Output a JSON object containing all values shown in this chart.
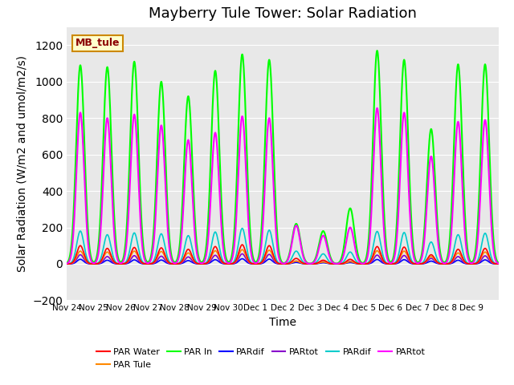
{
  "title": "Mayberry Tule Tower: Solar Radiation",
  "ylabel": "Solar Radiation (W/m2 and umol/m2/s)",
  "xlabel": "Time",
  "ylim": [
    -200,
    1300
  ],
  "yticks": [
    -200,
    0,
    200,
    400,
    600,
    800,
    1000,
    1200
  ],
  "background_color": "#e8e8e8",
  "title_fontsize": 13,
  "label_fontsize": 10,
  "tick_labels": [
    "Nov 24",
    "Nov 25",
    "Nov 26",
    "Nov 27",
    "Nov 28",
    "Nov 29",
    "Nov 30",
    "Dec 1",
    "Dec 2",
    "Dec 3",
    "Dec 4",
    "Dec 5",
    "Dec 6",
    "Dec 7",
    "Dec 8",
    "Dec 9"
  ],
  "series": [
    {
      "label": "PAR Water",
      "color": "#ff0000",
      "lw": 1.2
    },
    {
      "label": "PAR Tule",
      "color": "#ff8800",
      "lw": 1.2
    },
    {
      "label": "PAR In",
      "color": "#00ff00",
      "lw": 1.5
    },
    {
      "label": "PARdif",
      "color": "#0000ff",
      "lw": 1.2
    },
    {
      "label": "PARtot",
      "color": "#8800cc",
      "lw": 1.2
    },
    {
      "label": "PARdif",
      "color": "#00cccc",
      "lw": 1.2
    },
    {
      "label": "PARtot",
      "color": "#ff00ff",
      "lw": 1.5
    }
  ],
  "inset_label": "MB_tule",
  "inset_bg": "#ffffcc",
  "inset_border": "#cc8800",
  "n_days": 16,
  "day_points": 96,
  "peaks": [
    {
      "day": 0,
      "par_water": 100,
      "par_tule": 70,
      "par_in": 1090,
      "pardif_b": 25,
      "partot_p": 50,
      "pardif_c": 180,
      "partot_m": 830
    },
    {
      "day": 1,
      "par_water": 85,
      "par_tule": 65,
      "par_in": 1080,
      "pardif_b": 20,
      "partot_p": 40,
      "pardif_c": 160,
      "partot_m": 800
    },
    {
      "day": 2,
      "par_water": 90,
      "par_tule": 70,
      "par_in": 1110,
      "pardif_b": 22,
      "partot_p": 45,
      "pardif_c": 170,
      "partot_m": 820
    },
    {
      "day": 3,
      "par_water": 88,
      "par_tule": 68,
      "par_in": 1000,
      "pardif_b": 21,
      "partot_p": 42,
      "pardif_c": 165,
      "partot_m": 760
    },
    {
      "day": 4,
      "par_water": 80,
      "par_tule": 60,
      "par_in": 920,
      "pardif_b": 18,
      "partot_p": 38,
      "pardif_c": 155,
      "partot_m": 680
    },
    {
      "day": 5,
      "par_water": 95,
      "par_tule": 72,
      "par_in": 1060,
      "pardif_b": 23,
      "partot_p": 47,
      "pardif_c": 175,
      "partot_m": 720
    },
    {
      "day": 6,
      "par_water": 105,
      "par_tule": 78,
      "par_in": 1150,
      "pardif_b": 28,
      "partot_p": 55,
      "pardif_c": 195,
      "partot_m": 810
    },
    {
      "day": 7,
      "par_water": 100,
      "par_tule": 75,
      "par_in": 1120,
      "pardif_b": 26,
      "partot_p": 52,
      "pardif_c": 185,
      "partot_m": 800
    },
    {
      "day": 8,
      "par_water": 30,
      "par_tule": 15,
      "par_in": 220,
      "pardif_b": 8,
      "partot_p": 15,
      "pardif_c": 70,
      "partot_m": 210
    },
    {
      "day": 9,
      "par_water": 20,
      "par_tule": 10,
      "par_in": 180,
      "pardif_b": 6,
      "partot_p": 12,
      "pardif_c": 55,
      "partot_m": 155
    },
    {
      "day": 10,
      "par_water": 25,
      "par_tule": 12,
      "par_in": 305,
      "pardif_b": 7,
      "partot_p": 14,
      "pardif_c": 65,
      "partot_m": 200
    },
    {
      "day": 11,
      "par_water": 95,
      "par_tule": 72,
      "par_in": 1170,
      "pardif_b": 24,
      "partot_p": 48,
      "pardif_c": 178,
      "partot_m": 855
    },
    {
      "day": 12,
      "par_water": 92,
      "par_tule": 70,
      "par_in": 1120,
      "pardif_b": 23,
      "partot_p": 46,
      "pardif_c": 172,
      "partot_m": 830
    },
    {
      "day": 13,
      "par_water": 50,
      "par_tule": 40,
      "par_in": 740,
      "pardif_b": 15,
      "partot_p": 30,
      "pardif_c": 120,
      "partot_m": 590
    },
    {
      "day": 14,
      "par_water": 80,
      "par_tule": 60,
      "par_in": 1095,
      "pardif_b": 20,
      "partot_p": 40,
      "pardif_c": 160,
      "partot_m": 780
    },
    {
      "day": 15,
      "par_water": 85,
      "par_tule": 65,
      "par_in": 1095,
      "pardif_b": 22,
      "partot_p": 44,
      "pardif_c": 168,
      "partot_m": 790
    }
  ]
}
